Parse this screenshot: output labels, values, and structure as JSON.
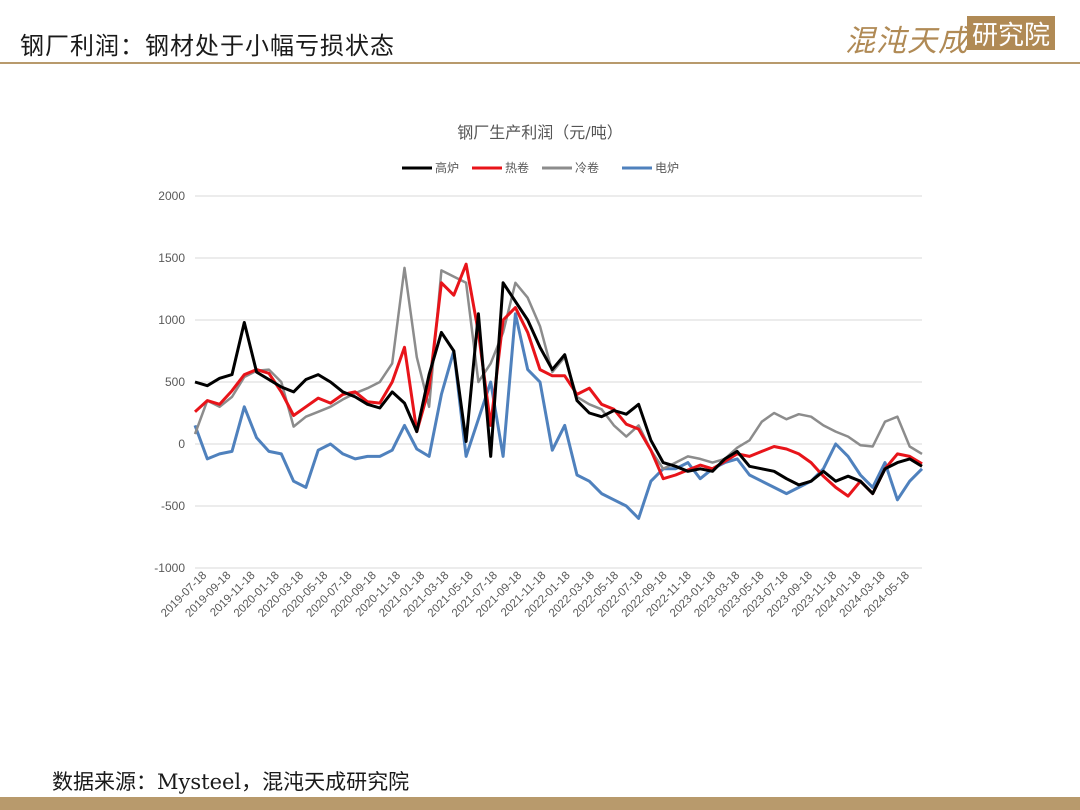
{
  "slide": {
    "title": "钢厂利润：钢材处于小幅亏损状态",
    "logo_text": "混沌天成",
    "logo_box": "研究院",
    "source": "数据来源：Mysteel，混沌天成研究院"
  },
  "colors": {
    "accent": "#b89a6c",
    "series": [
      "#000000",
      "#e8141a",
      "#8c8c8c",
      "#4f81bd"
    ]
  },
  "chart_data": {
    "type": "line",
    "title": "钢厂生产利润（元/吨）",
    "xlabel": "",
    "ylabel": "",
    "ylim": [
      -1000,
      2000
    ],
    "yticks": [
      2000,
      1500,
      1000,
      500,
      0,
      -500,
      -1000
    ],
    "grid": true,
    "legend_position": "top",
    "x_tick_labels": [
      "2019-07-18",
      "2019-09-18",
      "2019-11-18",
      "2020-01-18",
      "2020-03-18",
      "2020-05-18",
      "2020-07-18",
      "2020-09-18",
      "2020-11-18",
      "2021-01-18",
      "2021-03-18",
      "2021-05-18",
      "2021-07-18",
      "2021-09-18",
      "2021-11-18",
      "2022-01-18",
      "2022-03-18",
      "2022-05-18",
      "2022-07-18",
      "2022-09-18",
      "2022-11-18",
      "2023-01-18",
      "2023-03-18",
      "2023-05-18",
      "2023-07-18",
      "2023-09-18",
      "2023-11-18",
      "2024-01-18",
      "2024-03-18",
      "2024-05-18"
    ],
    "x_dates": [
      "2019-07",
      "2019-08",
      "2019-09",
      "2019-10",
      "2019-11",
      "2019-12",
      "2020-01",
      "2020-02",
      "2020-03",
      "2020-04",
      "2020-05",
      "2020-06",
      "2020-07",
      "2020-08",
      "2020-09",
      "2020-10",
      "2020-11",
      "2020-12",
      "2021-01",
      "2021-02",
      "2021-03",
      "2021-04",
      "2021-05",
      "2021-06",
      "2021-07",
      "2021-08",
      "2021-09",
      "2021-10",
      "2021-11",
      "2021-12",
      "2022-01",
      "2022-02",
      "2022-03",
      "2022-04",
      "2022-05",
      "2022-06",
      "2022-07",
      "2022-08",
      "2022-09",
      "2022-10",
      "2022-11",
      "2022-12",
      "2023-01",
      "2023-02",
      "2023-03",
      "2023-04",
      "2023-05",
      "2023-06",
      "2023-07",
      "2023-08",
      "2023-09",
      "2023-10",
      "2023-11",
      "2023-12",
      "2024-01",
      "2024-02",
      "2024-03",
      "2024-04",
      "2024-05",
      "2024-06"
    ],
    "series": [
      {
        "name": "高炉",
        "values": [
          500,
          470,
          530,
          560,
          980,
          580,
          520,
          460,
          420,
          520,
          560,
          500,
          420,
          380,
          320,
          290,
          420,
          330,
          100,
          560,
          900,
          750,
          20,
          1050,
          -100,
          1300,
          1150,
          1000,
          780,
          600,
          720,
          350,
          250,
          220,
          270,
          240,
          320,
          30,
          -150,
          -180,
          -220,
          -200,
          -220,
          -120,
          -60,
          -180,
          -200,
          -220,
          -280,
          -330,
          -300,
          -220,
          -300,
          -260,
          -300,
          -400,
          -200,
          -150,
          -120,
          -180
        ]
      },
      {
        "name": "热卷",
        "values": [
          260,
          350,
          320,
          430,
          560,
          600,
          570,
          420,
          230,
          300,
          370,
          330,
          400,
          420,
          340,
          330,
          500,
          780,
          100,
          450,
          1300,
          1200,
          1450,
          900,
          150,
          1000,
          1100,
          900,
          600,
          550,
          550,
          400,
          450,
          320,
          280,
          160,
          120,
          -50,
          -280,
          -250,
          -210,
          -170,
          -200,
          -140,
          -80,
          -100,
          -60,
          -20,
          -40,
          -80,
          -150,
          -260,
          -350,
          -420,
          -300,
          -400,
          -200,
          -80,
          -100,
          -160
        ]
      },
      {
        "name": "冷卷",
        "values": [
          80,
          350,
          300,
          380,
          540,
          590,
          600,
          500,
          140,
          220,
          260,
          300,
          360,
          410,
          450,
          500,
          650,
          1420,
          700,
          300,
          1400,
          1350,
          1300,
          500,
          650,
          900,
          1300,
          1180,
          950,
          580,
          700,
          380,
          320,
          280,
          150,
          60,
          150,
          -50,
          -200,
          -150,
          -100,
          -120,
          -150,
          -120,
          -30,
          30,
          180,
          250,
          200,
          240,
          220,
          150,
          100,
          60,
          -10,
          -20,
          180,
          220,
          -20,
          -80
        ]
      },
      {
        "name": "电炉",
        "values": [
          150,
          -120,
          -80,
          -60,
          300,
          50,
          -60,
          -80,
          -300,
          -350,
          -50,
          0,
          -80,
          -120,
          -100,
          -100,
          -50,
          150,
          -40,
          -100,
          400,
          750,
          -100,
          200,
          500,
          -100,
          1050,
          600,
          500,
          -50,
          150,
          -250,
          -300,
          -400,
          -450,
          -500,
          -600,
          -300,
          -200,
          -200,
          -150,
          -280,
          -200,
          -150,
          -120,
          -250,
          -300,
          -350,
          -400,
          -350,
          -300,
          -200,
          0,
          -100,
          -250,
          -350,
          -150,
          -450,
          -300,
          -200
        ]
      }
    ]
  }
}
